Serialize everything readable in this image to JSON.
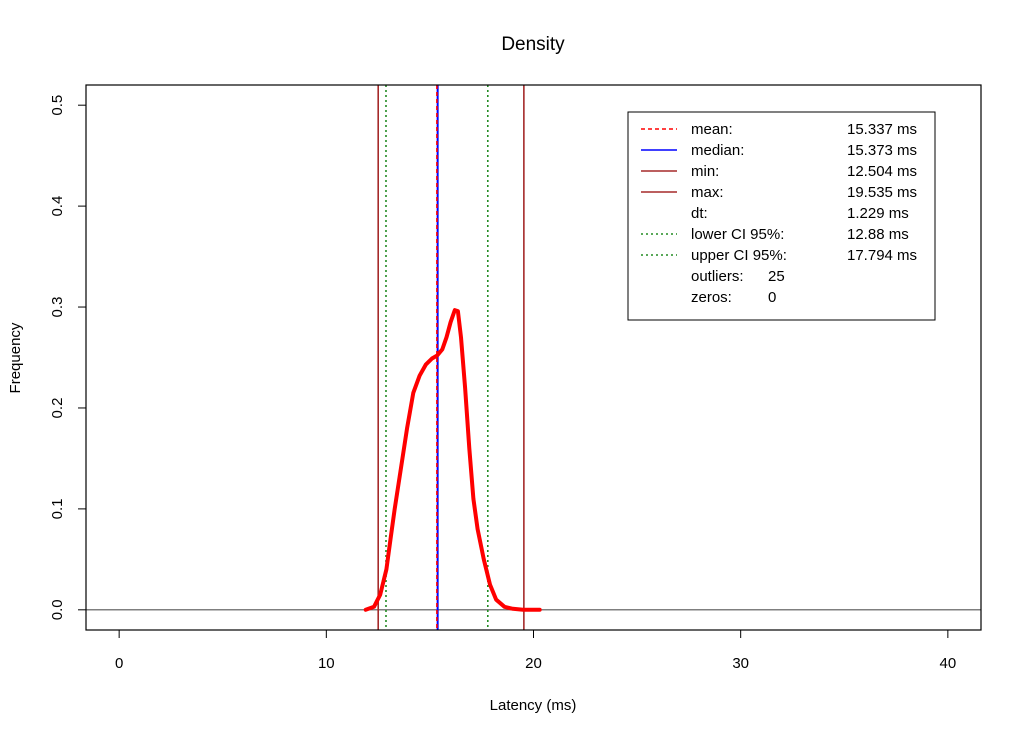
{
  "chart_data": {
    "type": "line",
    "title": "Density",
    "xlabel": "Latency (ms)",
    "ylabel": "Frequency",
    "xlim": [
      -1.6,
      41.6
    ],
    "ylim": [
      -0.02,
      0.52
    ],
    "x_ticks": [
      0,
      10,
      20,
      30,
      40
    ],
    "y_ticks": [
      0.0,
      0.1,
      0.2,
      0.3,
      0.4,
      0.5
    ],
    "x_tick_labels": [
      "0",
      "10",
      "20",
      "30",
      "40"
    ],
    "y_tick_labels": [
      "0.0",
      "0.1",
      "0.2",
      "0.3",
      "0.4",
      "0.5"
    ],
    "grid": false,
    "legend_position": "top-right",
    "series": [
      {
        "color": "#ff0000",
        "x": [
          11.9,
          12.3,
          12.6,
          12.9,
          13.1,
          13.3,
          13.6,
          13.9,
          14.2,
          14.5,
          14.8,
          15.1,
          15.35,
          15.6,
          15.8,
          16.0,
          16.2,
          16.35,
          16.5,
          16.7,
          16.9,
          17.1,
          17.3,
          17.6,
          17.9,
          18.2,
          18.6,
          19.0,
          19.5,
          20.0,
          20.3
        ],
        "y": [
          0.0,
          0.003,
          0.015,
          0.04,
          0.07,
          0.1,
          0.14,
          0.18,
          0.215,
          0.232,
          0.243,
          0.249,
          0.252,
          0.258,
          0.27,
          0.285,
          0.297,
          0.296,
          0.27,
          0.22,
          0.16,
          0.11,
          0.08,
          0.05,
          0.025,
          0.01,
          0.003,
          0.001,
          0.0,
          0.0,
          0.0
        ]
      }
    ],
    "reference_lines": [
      {
        "x": 12.504,
        "color": "#a52a2a",
        "style": "solid"
      },
      {
        "x": 12.88,
        "color": "#228b22",
        "style": "dotted"
      },
      {
        "x": 15.373,
        "color": "#0000ff",
        "style": "solid"
      },
      {
        "x": 15.337,
        "color": "#ff0000",
        "style": "dashed"
      },
      {
        "x": 17.794,
        "color": "#228b22",
        "style": "dotted"
      },
      {
        "x": 19.535,
        "color": "#a52a2a",
        "style": "solid"
      }
    ],
    "baseline_y": 0.0,
    "legend": [
      {
        "label": "mean:",
        "value": "15.337 ms",
        "color": "#ff0000",
        "style": "dashed"
      },
      {
        "label": "median:",
        "value": "15.373 ms",
        "color": "#0000ff",
        "style": "solid"
      },
      {
        "label": "min:",
        "value": "12.504 ms",
        "color": "#a52a2a",
        "style": "solid"
      },
      {
        "label": "max:",
        "value": "19.535 ms",
        "color": "#a52a2a",
        "style": "solid"
      },
      {
        "label": "dt:",
        "value": "1.229 ms",
        "color": "",
        "style": "none"
      },
      {
        "label": "lower CI 95%:",
        "value": "12.88 ms",
        "color": "#228b22",
        "style": "dotted"
      },
      {
        "label": "upper CI 95%:",
        "value": "17.794 ms",
        "color": "#228b22",
        "style": "dotted"
      },
      {
        "label": "outliers:",
        "value": "25",
        "color": "",
        "style": "none"
      },
      {
        "label": "zeros:",
        "value": "0",
        "color": "",
        "style": "none"
      }
    ]
  }
}
